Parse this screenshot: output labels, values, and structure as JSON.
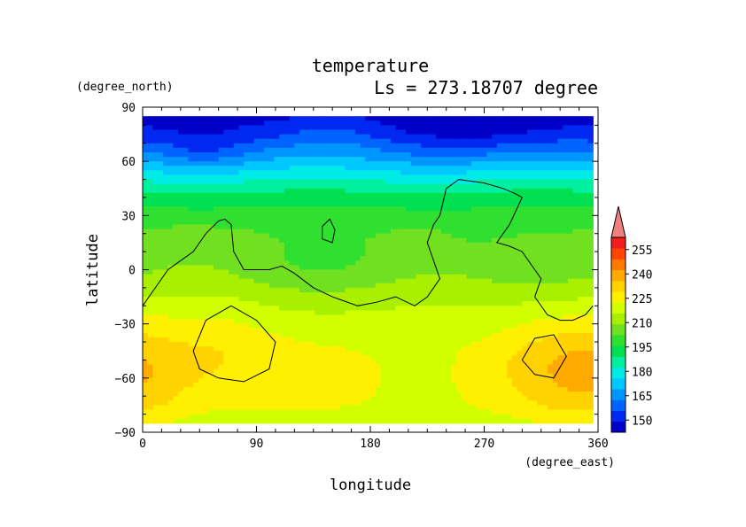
{
  "chart_data": {
    "type": "heatmap",
    "title": "temperature",
    "subtitle": "Ls = 273.18707 degree",
    "xlabel": "longitude",
    "ylabel": "latitude",
    "x_unit": "(degree_east)",
    "y_unit": "(degree_north)",
    "xlim": [
      0,
      360
    ],
    "ylim": [
      -90,
      90
    ],
    "data_extent_lat": [
      -85,
      85
    ],
    "data_extent_lon": [
      0,
      356
    ],
    "x_ticks": [
      "0",
      "90",
      "180",
      "270",
      "360"
    ],
    "y_ticks": [
      "90",
      "60",
      "30",
      "0",
      "−30",
      "−60",
      "−90"
    ],
    "x_tick_values": [
      0,
      90,
      180,
      270,
      360
    ],
    "y_tick_values": [
      90,
      60,
      30,
      0,
      -30,
      -60,
      -90
    ],
    "colorbar": {
      "min": 142.5,
      "max": 262.5,
      "step": 7.5,
      "extend": "max",
      "ticks": [
        150,
        165,
        180,
        195,
        210,
        225,
        240,
        255
      ],
      "tick_labels": [
        "150",
        "165",
        "180",
        "195",
        "210",
        "225",
        "240",
        "255"
      ],
      "colors": [
        "#0000c8",
        "#0028f0",
        "#0064ff",
        "#0096ff",
        "#00c8ff",
        "#00ebe6",
        "#00f0a0",
        "#00e050",
        "#30e030",
        "#70e020",
        "#a8f000",
        "#d2ff00",
        "#fff000",
        "#ffd200",
        "#ffaa00",
        "#ff7800",
        "#ff4600",
        "#f01e1e"
      ],
      "extend_color": "#f08080"
    },
    "zonal_profile": {
      "lat": [
        -85,
        -75,
        -65,
        -55,
        -45,
        -35,
        -25,
        -15,
        -5,
        5,
        15,
        25,
        35,
        45,
        55,
        65,
        75,
        85
      ],
      "temperature": [
        228,
        232,
        233,
        233,
        232,
        229,
        226,
        222,
        217,
        215,
        213,
        209,
        202,
        193,
        180,
        166,
        153,
        147
      ]
    },
    "anomalies": [
      {
        "lon": 10,
        "lat": -55,
        "dT": 6,
        "r_lon": 50,
        "r_lat": 30
      },
      {
        "lon": 65,
        "lat": -45,
        "dT": 7,
        "r_lon": 45,
        "r_lat": 25
      },
      {
        "lon": 320,
        "lat": -50,
        "dT": 7,
        "r_lon": 55,
        "r_lat": 30
      },
      {
        "lon": 350,
        "lat": -60,
        "dT": 6,
        "r_lon": 40,
        "r_lat": 30
      },
      {
        "lon": 150,
        "lat": 5,
        "dT": -5,
        "r_lon": 60,
        "r_lat": 15
      },
      {
        "lon": 150,
        "lat": 75,
        "dT": 6,
        "r_lon": 40,
        "r_lat": 12
      },
      {
        "lon": 260,
        "lat": 15,
        "dT": -3,
        "r_lon": 30,
        "r_lat": 12
      },
      {
        "lon": 50,
        "lat": 65,
        "dT": -6,
        "r_lon": 30,
        "r_lat": 10
      },
      {
        "lon": 270,
        "lat": 75,
        "dT": -5,
        "r_lon": 60,
        "r_lat": 15
      }
    ],
    "contours": [
      {
        "name": "contour-west-continent",
        "points": [
          [
            0,
            -20
          ],
          [
            10,
            -10
          ],
          [
            20,
            0
          ],
          [
            30,
            5
          ],
          [
            40,
            10
          ],
          [
            50,
            20
          ],
          [
            60,
            27
          ],
          [
            65,
            28
          ],
          [
            70,
            25
          ],
          [
            72,
            10
          ],
          [
            80,
            0
          ],
          [
            100,
            0
          ],
          [
            110,
            2
          ],
          [
            120,
            -2
          ],
          [
            135,
            -10
          ],
          [
            150,
            -15
          ],
          [
            170,
            -20
          ],
          [
            185,
            -18
          ],
          [
            200,
            -15
          ],
          [
            215,
            -20
          ],
          [
            225,
            -15
          ],
          [
            235,
            -5
          ],
          [
            230,
            5
          ],
          [
            225,
            15
          ],
          [
            230,
            25
          ],
          [
            235,
            30
          ],
          [
            240,
            45
          ],
          [
            250,
            50
          ],
          [
            270,
            48
          ],
          [
            285,
            45
          ],
          [
            295,
            42
          ],
          [
            300,
            40
          ],
          [
            290,
            25
          ],
          [
            280,
            15
          ],
          [
            290,
            13
          ],
          [
            300,
            10
          ],
          [
            310,
            0
          ],
          [
            315,
            -5
          ],
          [
            310,
            -15
          ],
          [
            320,
            -25
          ],
          [
            330,
            -28
          ],
          [
            340,
            -28
          ],
          [
            350,
            -25
          ],
          [
            356,
            -20
          ]
        ]
      },
      {
        "name": "contour-small-island",
        "points": [
          [
            142,
            24
          ],
          [
            148,
            28
          ],
          [
            152,
            22
          ],
          [
            150,
            15
          ],
          [
            142,
            17
          ],
          [
            142,
            24
          ]
        ]
      },
      {
        "name": "contour-basin-west",
        "points": [
          [
            40,
            -45
          ],
          [
            50,
            -28
          ],
          [
            70,
            -20
          ],
          [
            90,
            -28
          ],
          [
            105,
            -40
          ],
          [
            100,
            -55
          ],
          [
            80,
            -62
          ],
          [
            60,
            -60
          ],
          [
            45,
            -55
          ],
          [
            40,
            -45
          ]
        ]
      },
      {
        "name": "contour-basin-east",
        "points": [
          [
            300,
            -50
          ],
          [
            310,
            -38
          ],
          [
            325,
            -36
          ],
          [
            335,
            -48
          ],
          [
            325,
            -60
          ],
          [
            310,
            -58
          ],
          [
            300,
            -50
          ]
        ]
      }
    ]
  }
}
